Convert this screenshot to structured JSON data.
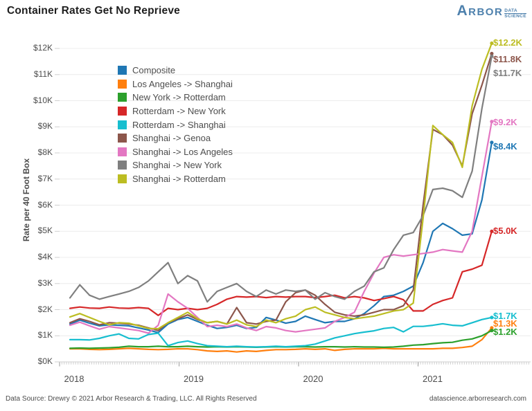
{
  "header": {
    "title": "Container Rates Get No Reprieve",
    "logo": {
      "brand_initial": "A",
      "brand_rest": "RBOR",
      "tagline_top": "DATA",
      "tagline_bottom": "SCIENCE",
      "color": "#4e81ad"
    }
  },
  "footer": {
    "left": "Data Source: Drewry © 2021 Arbor Research & Trading, LLC. All Rights Reserved",
    "right": "datascience.arborresearch.com"
  },
  "chart_data": {
    "type": "line",
    "title": "Container Rates Get No Reprieve",
    "xlabel": "",
    "ylabel": "Rate per 40 Foot Box",
    "ylim": [
      0,
      12.6
    ],
    "x_start": "2018-01",
    "frequency": "monthly",
    "x_end": "2021-08",
    "grid": "horizontal",
    "legend_position": "upper-left-inside",
    "y_tick_labels": [
      "$0K",
      "$1K",
      "$2K",
      "$3K",
      "$4K",
      "$5K",
      "$6K",
      "$7K",
      "$8K",
      "$9K",
      "$10K",
      "$11K",
      "$12K"
    ],
    "x_ticks": [
      "2018",
      "2019",
      "2020",
      "2021"
    ],
    "series": [
      {
        "name": "Composite",
        "color": "#1f77b4",
        "values": [
          1.45,
          1.6,
          1.48,
          1.38,
          1.42,
          1.4,
          1.38,
          1.3,
          1.22,
          1.12,
          1.45,
          1.62,
          1.7,
          1.55,
          1.4,
          1.28,
          1.32,
          1.4,
          1.28,
          1.32,
          1.7,
          1.6,
          1.48,
          1.55,
          1.75,
          1.62,
          1.5,
          1.55,
          1.55,
          1.65,
          1.85,
          2.15,
          2.5,
          2.55,
          2.7,
          2.9,
          3.8,
          5.0,
          5.3,
          5.1,
          4.85,
          4.9,
          6.2,
          8.4
        ]
      },
      {
        "name": "Los Angeles -> Shanghai",
        "color": "#ff7f0e",
        "values": [
          0.5,
          0.5,
          0.48,
          0.47,
          0.48,
          0.5,
          0.52,
          0.5,
          0.48,
          0.47,
          0.48,
          0.5,
          0.5,
          0.47,
          0.42,
          0.4,
          0.42,
          0.38,
          0.42,
          0.4,
          0.44,
          0.47,
          0.47,
          0.48,
          0.5,
          0.48,
          0.5,
          0.44,
          0.48,
          0.5,
          0.5,
          0.5,
          0.52,
          0.5,
          0.5,
          0.5,
          0.5,
          0.5,
          0.52,
          0.52,
          0.55,
          0.6,
          0.85,
          1.3
        ]
      },
      {
        "name": "New York -> Rotterdam",
        "color": "#2ca02c",
        "values": [
          0.52,
          0.53,
          0.52,
          0.53,
          0.54,
          0.56,
          0.6,
          0.58,
          0.58,
          0.6,
          0.58,
          0.58,
          0.6,
          0.58,
          0.57,
          0.58,
          0.57,
          0.58,
          0.57,
          0.56,
          0.57,
          0.58,
          0.57,
          0.58,
          0.58,
          0.57,
          0.58,
          0.58,
          0.57,
          0.58,
          0.57,
          0.57,
          0.56,
          0.57,
          0.6,
          0.64,
          0.66,
          0.7,
          0.73,
          0.75,
          0.83,
          0.88,
          1.0,
          1.2
        ]
      },
      {
        "name": "Rotterdam -> New York",
        "color": "#d62728",
        "values": [
          2.05,
          2.1,
          2.06,
          2.05,
          2.1,
          2.06,
          2.05,
          2.08,
          2.05,
          1.78,
          2.05,
          2.0,
          2.05,
          2.0,
          2.05,
          2.2,
          2.4,
          2.5,
          2.48,
          2.5,
          2.46,
          2.5,
          2.48,
          2.5,
          2.5,
          2.46,
          2.5,
          2.55,
          2.45,
          2.5,
          2.45,
          2.35,
          2.42,
          2.5,
          2.38,
          1.95,
          1.95,
          2.2,
          2.35,
          2.45,
          3.45,
          3.55,
          3.7,
          5.0
        ]
      },
      {
        "name": "Rotterdam -> Shanghai",
        "color": "#17becf",
        "values": [
          0.85,
          0.85,
          0.84,
          0.9,
          1.0,
          1.07,
          0.9,
          0.88,
          1.05,
          1.1,
          0.62,
          0.74,
          0.8,
          0.7,
          0.62,
          0.6,
          0.58,
          0.6,
          0.58,
          0.57,
          0.58,
          0.6,
          0.58,
          0.6,
          0.62,
          0.68,
          0.8,
          0.92,
          1.0,
          1.08,
          1.14,
          1.19,
          1.28,
          1.32,
          1.15,
          1.36,
          1.36,
          1.4,
          1.46,
          1.4,
          1.38,
          1.5,
          1.62,
          1.7
        ]
      },
      {
        "name": "Shanghai -> Genoa",
        "color": "#8c564b",
        "values": [
          1.5,
          1.65,
          1.55,
          1.42,
          1.5,
          1.48,
          1.45,
          1.4,
          1.3,
          1.2,
          1.5,
          1.65,
          1.8,
          1.62,
          1.5,
          1.55,
          1.45,
          2.08,
          1.5,
          1.45,
          1.55,
          1.6,
          2.3,
          2.65,
          2.75,
          2.55,
          2.2,
          1.9,
          1.8,
          1.75,
          1.8,
          1.9,
          2.0,
          2.0,
          2.15,
          2.75,
          6.0,
          8.9,
          8.7,
          8.3,
          7.5,
          9.5,
          10.6,
          11.8
        ]
      },
      {
        "name": "Shanghai -> Los Angeles",
        "color": "#e377c2",
        "values": [
          1.4,
          1.52,
          1.38,
          1.25,
          1.35,
          1.3,
          1.25,
          1.2,
          1.1,
          1.4,
          2.6,
          2.3,
          2.05,
          1.7,
          1.35,
          1.4,
          1.35,
          1.45,
          1.3,
          1.2,
          1.35,
          1.3,
          1.2,
          1.15,
          1.2,
          1.25,
          1.3,
          1.55,
          1.7,
          1.9,
          2.7,
          3.4,
          4.0,
          4.1,
          4.05,
          4.1,
          4.15,
          4.2,
          4.3,
          4.25,
          4.2,
          5.0,
          7.1,
          9.2
        ]
      },
      {
        "name": "Shanghai -> New York",
        "color": "#7f7f7f",
        "values": [
          2.45,
          2.95,
          2.55,
          2.4,
          2.5,
          2.6,
          2.7,
          2.85,
          3.1,
          3.45,
          3.8,
          3.0,
          3.3,
          3.1,
          2.3,
          2.7,
          2.85,
          3.0,
          2.7,
          2.5,
          2.75,
          2.6,
          2.75,
          2.7,
          2.75,
          2.4,
          2.65,
          2.5,
          2.4,
          2.7,
          2.9,
          3.45,
          3.6,
          4.3,
          4.85,
          4.95,
          5.6,
          6.6,
          6.65,
          6.55,
          6.3,
          7.3,
          9.7,
          11.7
        ]
      },
      {
        "name": "Shanghai -> Rotterdam",
        "color": "#bcbd22",
        "values": [
          1.72,
          1.85,
          1.7,
          1.55,
          1.42,
          1.5,
          1.48,
          1.38,
          1.28,
          1.27,
          1.5,
          1.7,
          1.9,
          1.65,
          1.5,
          1.55,
          1.45,
          1.6,
          1.42,
          1.35,
          1.6,
          1.5,
          1.65,
          1.75,
          2.0,
          2.1,
          1.9,
          1.8,
          1.7,
          1.65,
          1.7,
          1.75,
          1.85,
          1.95,
          2.0,
          2.25,
          5.5,
          9.05,
          8.7,
          8.4,
          7.45,
          9.8,
          11.2,
          12.2
        ]
      }
    ],
    "end_labels": [
      {
        "text": "$12.2K",
        "value": 12.2,
        "color": "#bcbd22",
        "dy": 0
      },
      {
        "text": "$11.8K",
        "value": 11.8,
        "color": "#8c564b",
        "dy": 8
      },
      {
        "text": "$11.7K",
        "value": 11.7,
        "color": "#7f7f7f",
        "dy": 25
      },
      {
        "text": "$9.2K",
        "value": 9.2,
        "color": "#e377c2",
        "dy": 1
      },
      {
        "text": "$8.4K",
        "value": 8.4,
        "color": "#1f77b4",
        "dy": 6
      },
      {
        "text": "$5.0K",
        "value": 5.0,
        "color": "#d62728",
        "dy": 0
      },
      {
        "text": "$1.7K",
        "value": 1.7,
        "color": "#17becf",
        "dy": -2
      },
      {
        "text": "$1.3K",
        "value": 1.3,
        "color": "#ff7f0e",
        "dy": -6
      },
      {
        "text": "$1.2K",
        "value": 1.2,
        "color": "#2ca02c",
        "dy": 2
      }
    ]
  }
}
